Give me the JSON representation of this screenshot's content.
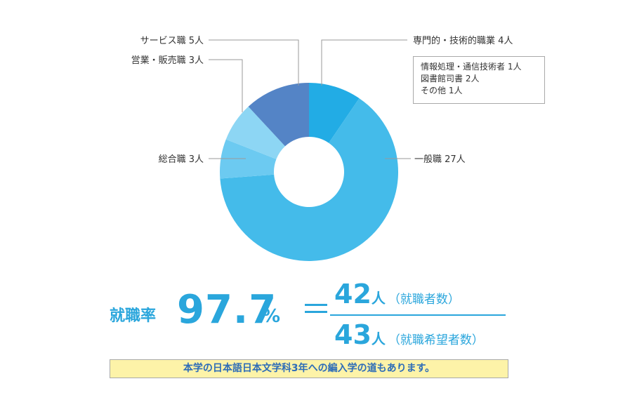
{
  "chart_data": {
    "type": "pie",
    "variant": "donut",
    "start": "top, clockwise",
    "slices": [
      {
        "label": "専門的・技術的職業",
        "count_text": "4人",
        "value": 4,
        "color": "#22ace5"
      },
      {
        "label": "一般職",
        "count_text": "27人",
        "value": 27,
        "color": "#44bbea"
      },
      {
        "label": "総合職",
        "count_text": "3人",
        "value": 3,
        "color": "#6ccaf1"
      },
      {
        "label": "営業・販売職",
        "count_text": "3人",
        "value": 3,
        "color": "#8dd6f4"
      },
      {
        "label": "サービス職",
        "count_text": "5人",
        "value": 5,
        "color": "#5484c6"
      }
    ],
    "breakdown_box": [
      "情報処理・通信技術者 1人",
      "図書館司書 2人",
      "その他 1人"
    ]
  },
  "rate": {
    "label": "就職率",
    "value": "97.7",
    "percent_sign": "%",
    "equals": "＝",
    "numerator": {
      "number": "42",
      "unit": "人",
      "note": "（就職者数）"
    },
    "denominator": {
      "number": "43",
      "unit": "人",
      "note": "（就職希望者数）"
    }
  },
  "banner": "本学の日本語日本文学科3年への編入学の道もあります。"
}
